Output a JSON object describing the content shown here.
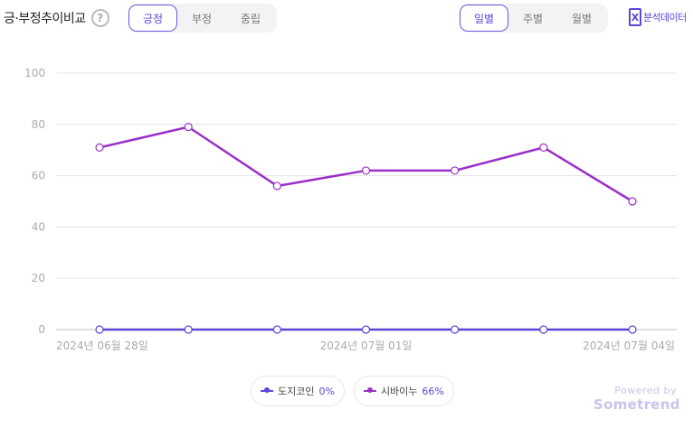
{
  "header": {
    "title": "긍·부정추이비교",
    "help_glyph": "?",
    "sentiment_tabs": [
      "긍정",
      "부정",
      "중립"
    ],
    "sentiment_active": 0,
    "period_tabs": [
      "일별",
      "주별",
      "월별"
    ],
    "period_active": 0,
    "export_label": "분석데이터",
    "export_glyph": "X"
  },
  "legend": [
    {
      "name": "도지코인",
      "pct": "0%",
      "color": "#5a45d8"
    },
    {
      "name": "시바이누",
      "pct": "66%",
      "color": "#9b30c9"
    }
  ],
  "brand": {
    "powered": "Powered by",
    "name": "Sometrend"
  },
  "chart_data": {
    "type": "line",
    "x": [
      "2024-06-28",
      "2024-06-29",
      "2024-06-30",
      "2024-07-01",
      "2024-07-02",
      "2024-07-03",
      "2024-07-04"
    ],
    "x_tick_labels": [
      {
        "index": 0,
        "label": "2024년 06월 28일"
      },
      {
        "index": 3,
        "label": "2024년 07월 01일"
      },
      {
        "index": 6,
        "label": "2024년 07월 04일"
      }
    ],
    "ylim": [
      0,
      100
    ],
    "yticks": [
      0,
      20,
      40,
      60,
      80,
      100
    ],
    "grid": true,
    "series": [
      {
        "name": "도지코인",
        "values": [
          0,
          0,
          0,
          0,
          0,
          0,
          0
        ],
        "color": "#5a45d8"
      },
      {
        "name": "시바이누",
        "values": [
          71,
          79,
          56,
          62,
          62,
          71,
          50
        ],
        "color": "#9b30c9"
      }
    ]
  }
}
